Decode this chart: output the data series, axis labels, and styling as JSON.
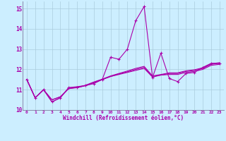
{
  "xlabel": "Windchill (Refroidissement éolien,°C)",
  "bg_color": "#cceeff",
  "line_color": "#aa00aa",
  "grid_color": "#aaccdd",
  "spine_color": "#8888aa",
  "xlim": [
    -0.5,
    23.5
  ],
  "ylim": [
    10.0,
    15.35
  ],
  "yticks": [
    10,
    11,
    12,
    13,
    14,
    15
  ],
  "xticks": [
    0,
    1,
    2,
    3,
    4,
    5,
    6,
    7,
    8,
    9,
    10,
    11,
    12,
    13,
    14,
    15,
    16,
    17,
    18,
    19,
    20,
    21,
    22,
    23
  ],
  "series": [
    [
      11.5,
      10.6,
      11.0,
      10.4,
      10.6,
      11.1,
      11.1,
      11.2,
      11.3,
      11.5,
      12.6,
      12.5,
      13.0,
      14.4,
      15.1,
      11.6,
      12.8,
      11.55,
      11.4,
      11.8,
      11.85,
      12.1,
      12.3,
      12.3
    ],
    [
      11.5,
      10.6,
      11.0,
      10.4,
      10.6,
      11.1,
      11.15,
      11.2,
      11.35,
      11.5,
      11.65,
      11.75,
      11.85,
      11.95,
      12.05,
      11.62,
      11.72,
      11.75,
      11.75,
      11.85,
      11.9,
      12.0,
      12.2,
      12.25
    ],
    [
      11.5,
      10.6,
      11.0,
      10.5,
      10.65,
      11.05,
      11.1,
      11.2,
      11.35,
      11.5,
      11.65,
      11.78,
      11.88,
      12.0,
      12.1,
      11.65,
      11.72,
      11.8,
      11.8,
      11.9,
      11.95,
      12.05,
      12.25,
      12.3
    ],
    [
      11.5,
      10.6,
      11.0,
      10.5,
      10.65,
      11.05,
      11.12,
      11.22,
      11.38,
      11.52,
      11.68,
      11.8,
      11.92,
      12.05,
      12.15,
      11.68,
      11.75,
      11.83,
      11.83,
      11.93,
      11.98,
      12.08,
      12.28,
      12.33
    ]
  ],
  "marker_series": 0
}
